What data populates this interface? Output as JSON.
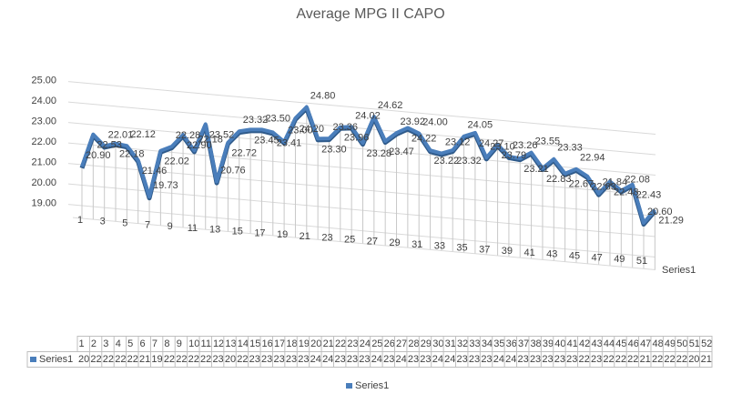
{
  "chart_data": {
    "type": "line",
    "title": "Average MPG II CAPO",
    "categories": [
      1,
      2,
      3,
      4,
      5,
      6,
      7,
      8,
      9,
      10,
      11,
      12,
      13,
      14,
      15,
      16,
      17,
      18,
      19,
      20,
      21,
      22,
      23,
      24,
      25,
      26,
      27,
      28,
      29,
      30,
      31,
      32,
      33,
      34,
      35,
      36,
      37,
      38,
      39,
      40,
      41,
      42,
      43,
      44,
      45,
      46,
      47,
      48,
      49,
      50,
      51,
      52
    ],
    "series": [
      {
        "name": "Series1",
        "color": "#4a7ebb",
        "values": [
          20.9,
          22.53,
          22.01,
          22.18,
          22.12,
          21.46,
          19.73,
          22.02,
          22.28,
          22.9,
          22.18,
          23.52,
          20.76,
          22.72,
          23.32,
          23.45,
          23.5,
          23.41,
          23.0,
          24.2,
          24.8,
          23.3,
          23.36,
          23.96,
          24.02,
          23.28,
          24.62,
          23.47,
          23.92,
          24.22,
          24.0,
          23.22,
          23.12,
          23.32,
          24.05,
          24.27,
          23.1,
          23.79,
          23.26,
          23.21,
          23.55,
          22.83,
          23.33,
          22.67,
          22.94,
          22.63,
          21.84,
          22.48,
          22.08,
          22.43,
          20.6,
          21.29
        ],
        "value_labels": [
          "20.90",
          "22.53",
          "22.01",
          "22.18",
          "22.12",
          "21.46",
          "19.73",
          "22.02",
          "22.28",
          "22.90",
          "22.18",
          "23.52",
          "20.76",
          "22.72",
          "23.32",
          "23.45",
          "23.50",
          "23.41",
          "23.00",
          "24.20",
          "24.80",
          "23.30",
          "23.36",
          "23.96",
          "24.02",
          "23.28",
          "24.62",
          "23.47",
          "23.92",
          "24.22",
          "24.00",
          "23.22",
          "23.12",
          "23.32",
          "24.05",
          "24.27",
          "23.10",
          "23.79",
          "23.26",
          "23.21",
          "23.55",
          "22.83",
          "23.33",
          "22.67",
          "22.94",
          "22.63",
          "21.84",
          "22.48",
          "22.08",
          "22.43",
          "20.60",
          "21.29"
        ]
      }
    ],
    "ylim": [
      19,
      25
    ],
    "yticks": [
      {
        "value": 19,
        "label": "19.00"
      },
      {
        "value": 20,
        "label": "20.00"
      },
      {
        "value": 21,
        "label": "21.00"
      },
      {
        "value": 22,
        "label": "22.00"
      },
      {
        "value": 23,
        "label": "23.00"
      },
      {
        "value": 24,
        "label": "24.00"
      },
      {
        "value": 25,
        "label": "25.00"
      }
    ],
    "grid": true,
    "legend": "bottom"
  }
}
